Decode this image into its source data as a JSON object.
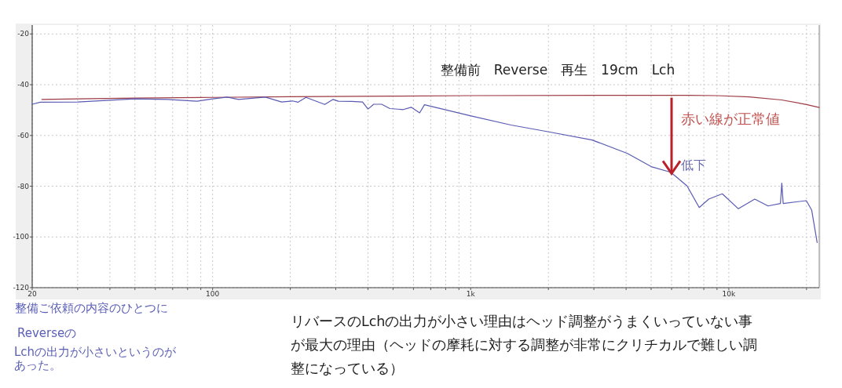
{
  "chart_data": {
    "type": "line",
    "title": "整備前　Reverse　再生　19cm　Lch",
    "log": "x",
    "grid": true,
    "xlim": [
      20,
      22400
    ],
    "ylim": [
      -120,
      -16.5
    ],
    "xticks": [
      {
        "value": 20,
        "label": "20"
      },
      {
        "value": 30,
        "label": null
      },
      {
        "value": 40,
        "label": null
      },
      {
        "value": 50,
        "label": null
      },
      {
        "value": 60,
        "label": null
      },
      {
        "value": 70,
        "label": null
      },
      {
        "value": 80,
        "label": null
      },
      {
        "value": 90,
        "label": null
      },
      {
        "value": 100,
        "label": "100"
      },
      {
        "value": 200,
        "label": null
      },
      {
        "value": 300,
        "label": null
      },
      {
        "value": 400,
        "label": null
      },
      {
        "value": 500,
        "label": null
      },
      {
        "value": 600,
        "label": null
      },
      {
        "value": 700,
        "label": null
      },
      {
        "value": 800,
        "label": null
      },
      {
        "value": 900,
        "label": null
      },
      {
        "value": 1000,
        "label": "1k"
      },
      {
        "value": 2000,
        "label": null
      },
      {
        "value": 3000,
        "label": null
      },
      {
        "value": 4000,
        "label": null
      },
      {
        "value": 5000,
        "label": null
      },
      {
        "value": 6000,
        "label": null
      },
      {
        "value": 7000,
        "label": null
      },
      {
        "value": 8000,
        "label": null
      },
      {
        "value": 9000,
        "label": null
      },
      {
        "value": 10000,
        "label": "10k"
      },
      {
        "value": 20000,
        "label": null
      }
    ],
    "yticks": [
      -20,
      -40,
      -60,
      -80,
      -100,
      -120
    ],
    "series": [
      {
        "color": "#9c3b44",
        "x": [
          21.8,
          30,
          50,
          100,
          200,
          500,
          1000,
          3000,
          7000,
          9000,
          12000,
          16000,
          20000,
          22400
        ],
        "values": [
          -45.8,
          -45.6,
          -45.3,
          -45.0,
          -44.7,
          -44.5,
          -44.3,
          -44.2,
          -44.2,
          -44.3,
          -44.8,
          -46.0,
          -47.8,
          -49.0
        ]
      },
      {
        "color": "#5a5ab4",
        "x": [
          20,
          21.5,
          30,
          50,
          67,
          87,
          100,
          114,
          126,
          160,
          185,
          204,
          214,
          230,
          272,
          293,
          307,
          346,
          381,
          400,
          421,
          452,
          486,
          548,
          588,
          634,
          662,
          995,
          1432,
          2009,
          2954,
          4047,
          5034,
          5957,
          6891,
          7680,
          8357,
          9433,
          10890,
          12600,
          14190,
          15850,
          16040,
          16240,
          19970,
          20940,
          21990
        ],
        "values": [
          -47.7,
          -46.9,
          -46.8,
          -45.6,
          -45.8,
          -46.5,
          -45.6,
          -44.9,
          -45.8,
          -44.9,
          -46.8,
          -46.4,
          -46.9,
          -45.0,
          -47.8,
          -45.8,
          -46.5,
          -46.6,
          -46.8,
          -49.6,
          -47.7,
          -47.7,
          -49.4,
          -49.8,
          -48.9,
          -51.1,
          -47.9,
          -52.2,
          -55.9,
          -58.6,
          -61.8,
          -67.1,
          -72.4,
          -74.5,
          -79.9,
          -88.4,
          -85.1,
          -83.0,
          -88.9,
          -85.1,
          -87.8,
          -86.8,
          -78.8,
          -86.8,
          -85.7,
          -89.4,
          -102.2
        ]
      }
    ],
    "annotations": [
      {
        "text": "赤い線が正常値",
        "x": 6000,
        "y": -44.2
      },
      {
        "text": "低下",
        "x": 6000,
        "y": -75
      },
      "整備ご依頼の内容のひとつに",
      "Reverseの",
      "Lchの出力が小さいというのが",
      "あった。",
      "リバースのLchの出力が小さい理由はヘッド調整がうまくいっていない事が最大の理由（ヘッドの摩耗に対する調整が非常にクリチカルで難しい調整になっている）"
    ]
  }
}
